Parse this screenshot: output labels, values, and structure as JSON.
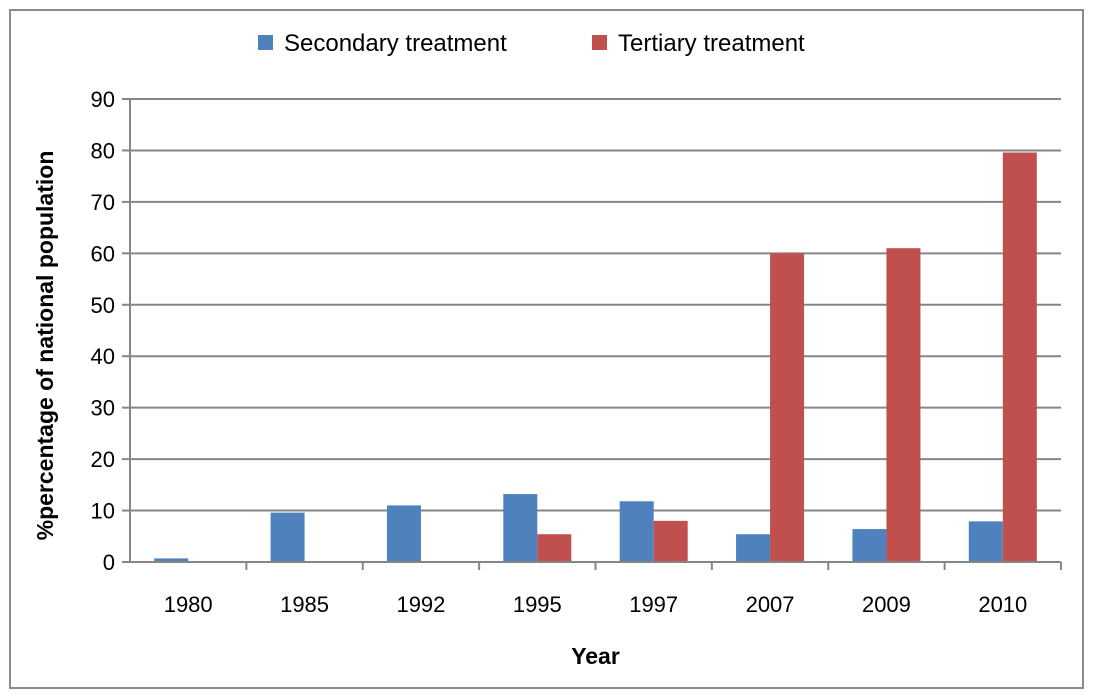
{
  "chart_data": {
    "type": "bar",
    "categories": [
      "1980",
      "1985",
      "1992",
      "1995",
      "1997",
      "2007",
      "2009",
      "2010"
    ],
    "series": [
      {
        "name": "Secondary treatment",
        "color": "#4f81bd",
        "values": [
          0.7,
          9.6,
          11,
          13.2,
          11.8,
          5.4,
          6.4,
          7.9
        ]
      },
      {
        "name": "Tertiary treatment",
        "color": "#c0504d",
        "values": [
          0,
          0,
          0,
          5.4,
          8,
          60,
          61,
          79.6
        ]
      }
    ],
    "title": "",
    "xlabel": "Year",
    "ylabel": "%percentage of national population",
    "ylim": [
      0,
      90
    ],
    "yticks": [
      0,
      10,
      20,
      30,
      40,
      50,
      60,
      70,
      80,
      90
    ],
    "grid": true,
    "legend_position": "top"
  }
}
